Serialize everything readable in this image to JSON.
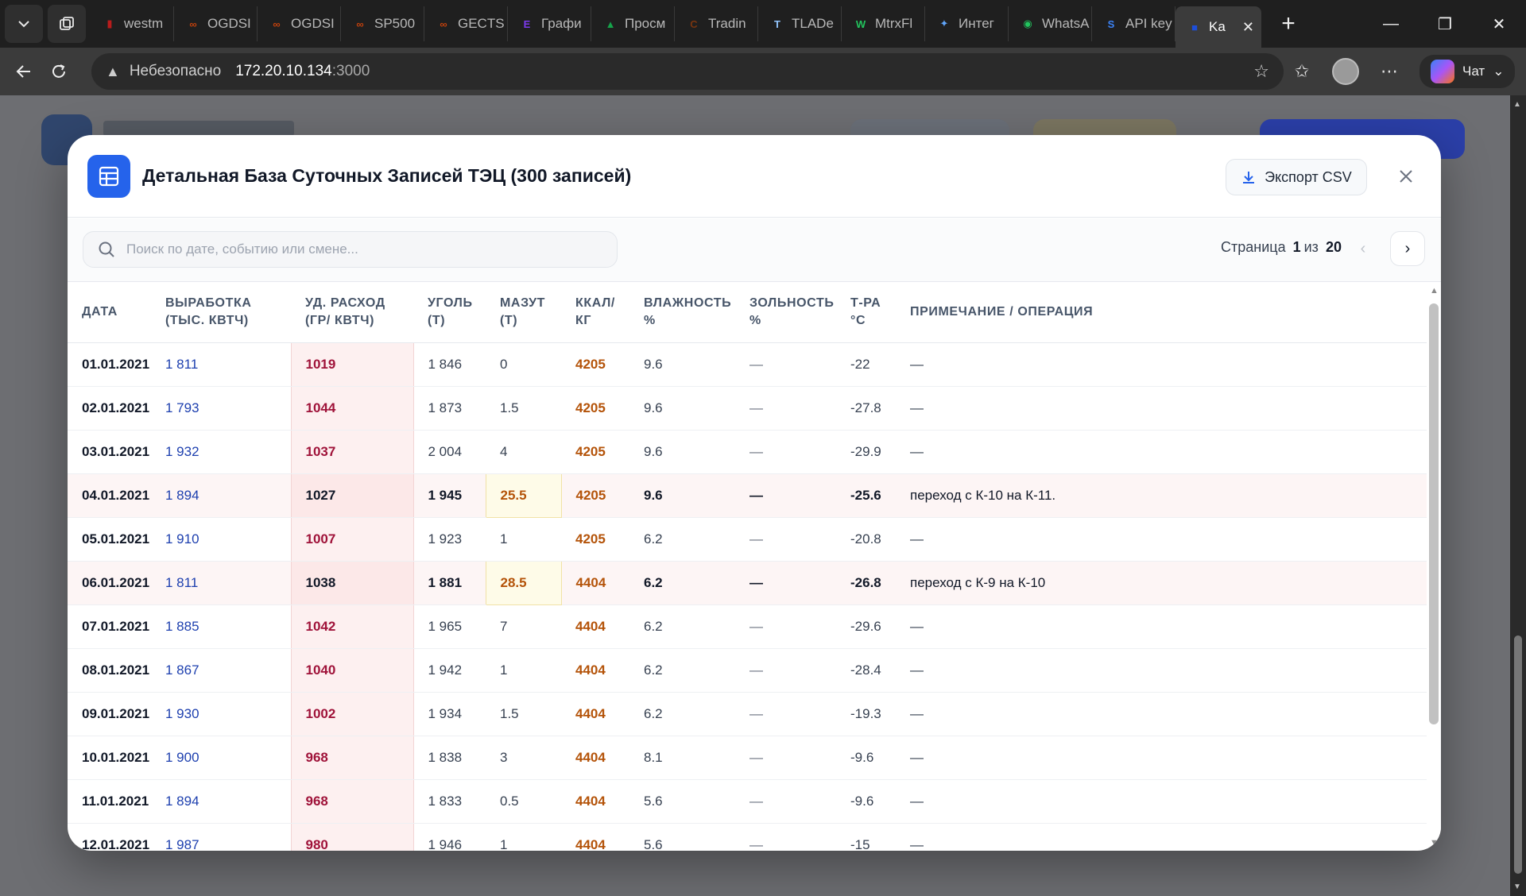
{
  "browser": {
    "tabs": [
      {
        "label": "westm",
        "icon": "bar-chart-icon",
        "color": "#b91c1c"
      },
      {
        "label": "OGDSI",
        "icon": "infinity-icon",
        "color": "#c2410c"
      },
      {
        "label": "OGDSI",
        "icon": "infinity-icon",
        "color": "#c2410c"
      },
      {
        "label": "SP500",
        "icon": "infinity-icon",
        "color": "#c2410c"
      },
      {
        "label": "GECTS",
        "icon": "infinity-icon",
        "color": "#c2410c"
      },
      {
        "label": "Графи",
        "icon": "doc-icon",
        "color": "#7c3aed"
      },
      {
        "label": "Просм",
        "icon": "triangle-icon",
        "color": "#16a34a"
      },
      {
        "label": "Tradin",
        "icon": "c-icon",
        "color": "#78350f"
      },
      {
        "label": "TLADe",
        "icon": "t-icon",
        "color": "#93c5fd"
      },
      {
        "label": "MtrxFl",
        "icon": "w-icon",
        "color": "#22c55e"
      },
      {
        "label": "Интег",
        "icon": "sparkle-icon",
        "color": "#60a5fa"
      },
      {
        "label": "WhatsA",
        "icon": "whatsapp-icon",
        "color": "#22c55e"
      },
      {
        "label": "API key",
        "icon": "s-icon",
        "color": "#3b82f6"
      },
      {
        "label": "Ka",
        "icon": "app-icon",
        "color": "#1d4ed8"
      }
    ],
    "address": {
      "security": "Небезопасно",
      "host": "172.20.10.134",
      "port": ":3000"
    },
    "chat_label": "Чат"
  },
  "modal": {
    "title": "Детальная База Суточных Записей ТЭЦ (300 записей)",
    "export_label": "Экспорт CSV",
    "search_placeholder": "Поиск по дате, событию или смене...",
    "pager": {
      "prefix": "Страница",
      "current": "1",
      "middle": "из",
      "total": "20"
    },
    "columns": [
      "ДАТА",
      "ВЫРАБОТКА (ТЫС. КВТЧ)",
      "УД. РАСХОД (ГР/ КВТЧ)",
      "УГОЛЬ (Т)",
      "МАЗУТ (Т)",
      "ККАЛ/ КГ",
      "ВЛАЖНОСТЬ %",
      "ЗОЛЬНОСТЬ %",
      "Т-РА °С",
      "ПРИМЕЧАНИЕ / ОПЕРАЦИЯ"
    ],
    "rows": [
      {
        "date": "01.01.2021",
        "gen": "1 811",
        "spec": "1019",
        "coal": "1 846",
        "mazut": "0",
        "kcal": "4205",
        "hum": "9.6",
        "ash": "—",
        "temp": "-22",
        "note": "—",
        "highlight": false
      },
      {
        "date": "02.01.2021",
        "gen": "1 793",
        "spec": "1044",
        "coal": "1 873",
        "mazut": "1.5",
        "kcal": "4205",
        "hum": "9.6",
        "ash": "—",
        "temp": "-27.8",
        "note": "—",
        "highlight": false
      },
      {
        "date": "03.01.2021",
        "gen": "1 932",
        "spec": "1037",
        "coal": "2 004",
        "mazut": "4",
        "kcal": "4205",
        "hum": "9.6",
        "ash": "—",
        "temp": "-29.9",
        "note": "—",
        "highlight": false
      },
      {
        "date": "04.01.2021",
        "gen": "1 894",
        "spec": "1027",
        "coal": "1 945",
        "mazut": "25.5",
        "kcal": "4205",
        "hum": "9.6",
        "ash": "—",
        "temp": "-25.6",
        "note": "переход с К-10 на К-11.",
        "highlight": true
      },
      {
        "date": "05.01.2021",
        "gen": "1 910",
        "spec": "1007",
        "coal": "1 923",
        "mazut": "1",
        "kcal": "4205",
        "hum": "6.2",
        "ash": "—",
        "temp": "-20.8",
        "note": "—",
        "highlight": false
      },
      {
        "date": "06.01.2021",
        "gen": "1 811",
        "spec": "1038",
        "coal": "1 881",
        "mazut": "28.5",
        "kcal": "4404",
        "hum": "6.2",
        "ash": "—",
        "temp": "-26.8",
        "note": "переход с К-9 на К-10",
        "highlight": true
      },
      {
        "date": "07.01.2021",
        "gen": "1 885",
        "spec": "1042",
        "coal": "1 965",
        "mazut": "7",
        "kcal": "4404",
        "hum": "6.2",
        "ash": "—",
        "temp": "-29.6",
        "note": "—",
        "highlight": false
      },
      {
        "date": "08.01.2021",
        "gen": "1 867",
        "spec": "1040",
        "coal": "1 942",
        "mazut": "1",
        "kcal": "4404",
        "hum": "6.2",
        "ash": "—",
        "temp": "-28.4",
        "note": "—",
        "highlight": false
      },
      {
        "date": "09.01.2021",
        "gen": "1 930",
        "spec": "1002",
        "coal": "1 934",
        "mazut": "1.5",
        "kcal": "4404",
        "hum": "6.2",
        "ash": "—",
        "temp": "-19.3",
        "note": "—",
        "highlight": false
      },
      {
        "date": "10.01.2021",
        "gen": "1 900",
        "spec": "968",
        "coal": "1 838",
        "mazut": "3",
        "kcal": "4404",
        "hum": "8.1",
        "ash": "—",
        "temp": "-9.6",
        "note": "—",
        "highlight": false
      },
      {
        "date": "11.01.2021",
        "gen": "1 894",
        "spec": "968",
        "coal": "1 833",
        "mazut": "0.5",
        "kcal": "4404",
        "hum": "5.6",
        "ash": "—",
        "temp": "-9.6",
        "note": "—",
        "highlight": false
      },
      {
        "date": "12.01.2021",
        "gen": "1 987",
        "spec": "980",
        "coal": "1 946",
        "mazut": "1",
        "kcal": "4404",
        "hum": "5.6",
        "ash": "—",
        "temp": "-15",
        "note": "—",
        "highlight": false
      }
    ]
  }
}
